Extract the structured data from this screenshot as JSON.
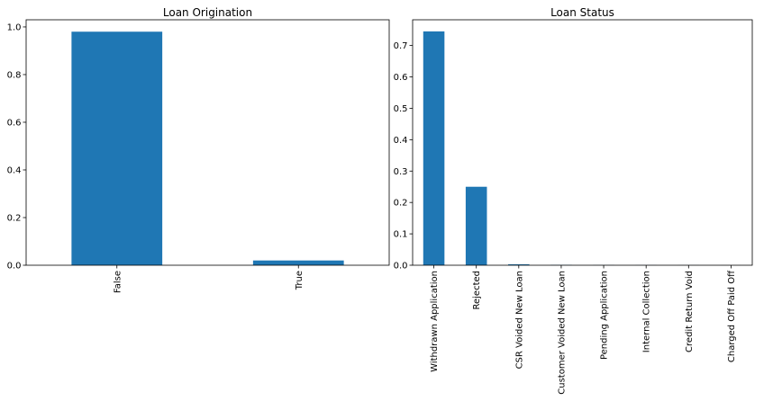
{
  "chart_data": [
    {
      "type": "bar",
      "title": "Loan Origination",
      "xlabel": "",
      "ylabel": "",
      "categories": [
        "False",
        "True"
      ],
      "values": [
        0.98,
        0.02
      ],
      "ylim": [
        0,
        1.03
      ],
      "yticks": [
        0.0,
        0.2,
        0.4,
        0.6,
        0.8,
        1.0
      ],
      "ytick_labels": [
        "0.0",
        "0.2",
        "0.4",
        "0.6",
        "0.8",
        "1.0"
      ],
      "color": "#1f77b4",
      "grid": false
    },
    {
      "type": "bar",
      "title": "Loan Status",
      "xlabel": "",
      "ylabel": "",
      "categories": [
        "Withdrawn Application",
        "Rejected",
        "CSR Voided New Loan",
        "Customer Voided New Loan",
        "Pending Application",
        "Internal Collection",
        "Credit Return Void",
        "Charged Off Paid Off"
      ],
      "values": [
        0.745,
        0.25,
        0.003,
        0.001,
        0.0005,
        0.0003,
        0.0002,
        0.0001
      ],
      "ylim": [
        0,
        0.782
      ],
      "yticks": [
        0.0,
        0.1,
        0.2,
        0.3,
        0.4,
        0.5,
        0.6,
        0.7
      ],
      "ytick_labels": [
        "0.0",
        "0.1",
        "0.2",
        "0.3",
        "0.4",
        "0.5",
        "0.6",
        "0.7"
      ],
      "color": "#1f77b4",
      "grid": false
    }
  ]
}
